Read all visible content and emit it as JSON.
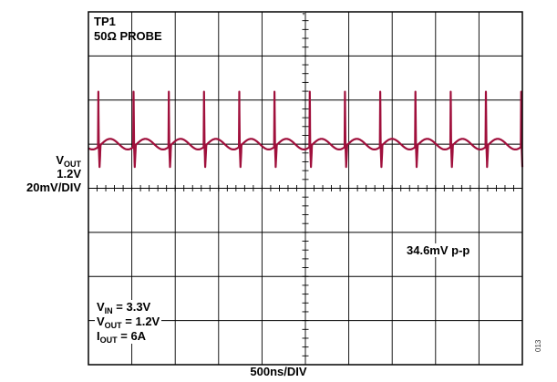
{
  "probe_label": {
    "line1": "TP1",
    "line2": "50Ω PROBE"
  },
  "y_label": {
    "v": "V",
    "sub": "OUT",
    "level": "1.2V",
    "scale": "20mV/DIV"
  },
  "pp_readout": "34.6mV p-p",
  "conditions": [
    {
      "pre": "V",
      "sub": "IN",
      "post": " = 3.3V"
    },
    {
      "pre": "V",
      "sub": "OUT",
      "post": " = 1.2V"
    },
    {
      "pre": "I",
      "sub": "OUT",
      "post": " = 6A"
    }
  ],
  "time_div": "500ns/DIV",
  "fig_code": "013",
  "colors": {
    "trace": "#a0103c",
    "grid": "#000000"
  },
  "chart_data": {
    "type": "line",
    "title": "",
    "xlabel": "500ns/DIV",
    "ylabel": "20mV/DIV",
    "x_unit": "ns",
    "y_unit": "mV",
    "x_range": [
      0,
      5000
    ],
    "y_range": [
      -80,
      80
    ],
    "grid": true,
    "divisions": {
      "x": 10,
      "y": 8
    },
    "channel_offset_mV": 20,
    "series": [
      {
        "name": "",
        "color": "#a0103c",
        "ripple_period_ns": 406,
        "first_spike_ns": 110,
        "spike_peak_mV": 25,
        "spike_trough_mV": -9.6,
        "peak_to_peak_mV": 34.6,
        "baseline_mV": 0
      }
    ]
  }
}
